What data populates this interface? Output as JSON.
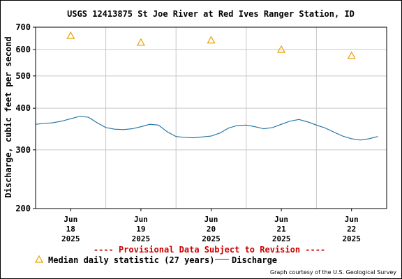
{
  "chart_data": {
    "type": "line",
    "title": "USGS 12413875 St Joe River at Red Ives Ranger Station, ID",
    "ylabel": "Discharge, cubic feet per second",
    "xlabel": "",
    "yscale": "log",
    "ylim": [
      200,
      700
    ],
    "yticks": [
      {
        "value": 200,
        "label": "200"
      },
      {
        "value": 300,
        "label": "300"
      },
      {
        "value": 400,
        "label": "400"
      },
      {
        "value": 500,
        "label": "500"
      },
      {
        "value": 600,
        "label": "600"
      },
      {
        "value": 700,
        "label": "700"
      }
    ],
    "xlim": [
      "2025-06-17T12:00",
      "2025-06-22T12:00"
    ],
    "xticks": [
      {
        "date": "2025-06-18",
        "lines": [
          "Jun",
          "18",
          "2025"
        ]
      },
      {
        "date": "2025-06-19",
        "lines": [
          "Jun",
          "19",
          "2025"
        ]
      },
      {
        "date": "2025-06-20",
        "lines": [
          "Jun",
          "20",
          "2025"
        ]
      },
      {
        "date": "2025-06-21",
        "lines": [
          "Jun",
          "21",
          "2025"
        ]
      },
      {
        "date": "2025-06-22",
        "lines": [
          "Jun",
          "22",
          "2025"
        ]
      }
    ],
    "grid": true,
    "series": [
      {
        "name": "Discharge",
        "color": "#1a6fa0",
        "style": "line",
        "x": [
          "2025-06-17T12:00",
          "2025-06-17T15:00",
          "2025-06-17T18:00",
          "2025-06-17T21:00",
          "2025-06-18T00:00",
          "2025-06-18T03:00",
          "2025-06-18T06:00",
          "2025-06-18T09:00",
          "2025-06-18T12:00",
          "2025-06-18T15:00",
          "2025-06-18T18:00",
          "2025-06-18T21:00",
          "2025-06-19T00:00",
          "2025-06-19T03:00",
          "2025-06-19T06:00",
          "2025-06-19T09:00",
          "2025-06-19T12:00",
          "2025-06-19T15:00",
          "2025-06-19T18:00",
          "2025-06-19T21:00",
          "2025-06-20T00:00",
          "2025-06-20T03:00",
          "2025-06-20T06:00",
          "2025-06-20T09:00",
          "2025-06-20T12:00",
          "2025-06-20T15:00",
          "2025-06-20T18:00",
          "2025-06-20T21:00",
          "2025-06-21T00:00",
          "2025-06-21T03:00",
          "2025-06-21T06:00",
          "2025-06-21T09:00",
          "2025-06-21T12:00",
          "2025-06-21T15:00",
          "2025-06-21T18:00",
          "2025-06-21T21:00",
          "2025-06-22T00:00",
          "2025-06-22T03:00",
          "2025-06-22T06:00",
          "2025-06-22T09:00"
        ],
        "values": [
          358,
          360,
          362,
          366,
          372,
          378,
          376,
          362,
          350,
          346,
          345,
          347,
          352,
          358,
          356,
          340,
          329,
          327,
          326,
          328,
          330,
          337,
          349,
          355,
          356,
          352,
          347,
          350,
          358,
          366,
          370,
          364,
          356,
          349,
          339,
          330,
          324,
          321,
          324,
          329
        ]
      },
      {
        "name": "Median daily statistic (27 years)",
        "color": "#e8a000",
        "style": "triangle",
        "x": [
          "2025-06-18T00:00",
          "2025-06-19T00:00",
          "2025-06-20T00:00",
          "2025-06-21T00:00",
          "2025-06-22T00:00"
        ],
        "values": [
          660,
          630,
          640,
          600,
          575
        ]
      }
    ],
    "annotations": [
      "---- Provisional Data Subject to Revision ----"
    ],
    "legend": {
      "placement": "bottom-left"
    },
    "credit": "Graph courtesy of the U.S. Geological Survey"
  }
}
